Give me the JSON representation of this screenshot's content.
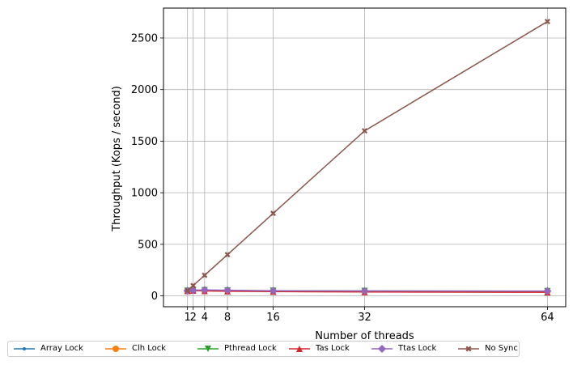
{
  "chart_data": {
    "type": "line",
    "title": "",
    "xlabel": "Number of threads",
    "ylabel": "Throughput (Kops / second)",
    "x": [
      1,
      2,
      4,
      8,
      16,
      32,
      64
    ],
    "x_ticks": [
      "1",
      "2",
      "4",
      "8",
      "16",
      "32",
      "64"
    ],
    "y_ticks": [
      "0",
      "500",
      "1000",
      "1500",
      "2000",
      "2500"
    ],
    "xlim": [
      -3.2,
      67.2
    ],
    "ylim": [
      -105,
      2790
    ],
    "grid": true,
    "legend_position": "bottom",
    "series": [
      {
        "name": "Array Lock",
        "color": "#1f77b4",
        "marker": "point",
        "values": [
          45,
          50,
          50,
          48,
          45,
          42,
          40
        ]
      },
      {
        "name": "Clh Lock",
        "color": "#ff7f0e",
        "marker": "circle",
        "values": [
          48,
          52,
          52,
          50,
          48,
          46,
          44
        ]
      },
      {
        "name": "Pthread Lock",
        "color": "#2ca02c",
        "marker": "triangle_down",
        "values": [
          50,
          55,
          55,
          52,
          50,
          48,
          46
        ]
      },
      {
        "name": "Tas Lock",
        "color": "#d62728",
        "marker": "triangle_up",
        "values": [
          48,
          52,
          48,
          45,
          42,
          38,
          35
        ]
      },
      {
        "name": "Ttas Lock",
        "color": "#9467bd",
        "marker": "diamond",
        "values": [
          50,
          55,
          58,
          55,
          50,
          48,
          47
        ]
      },
      {
        "name": "No Sync",
        "color": "#8c564b",
        "marker": "x",
        "values": [
          50,
          100,
          200,
          400,
          800,
          1600,
          2660
        ]
      }
    ]
  }
}
